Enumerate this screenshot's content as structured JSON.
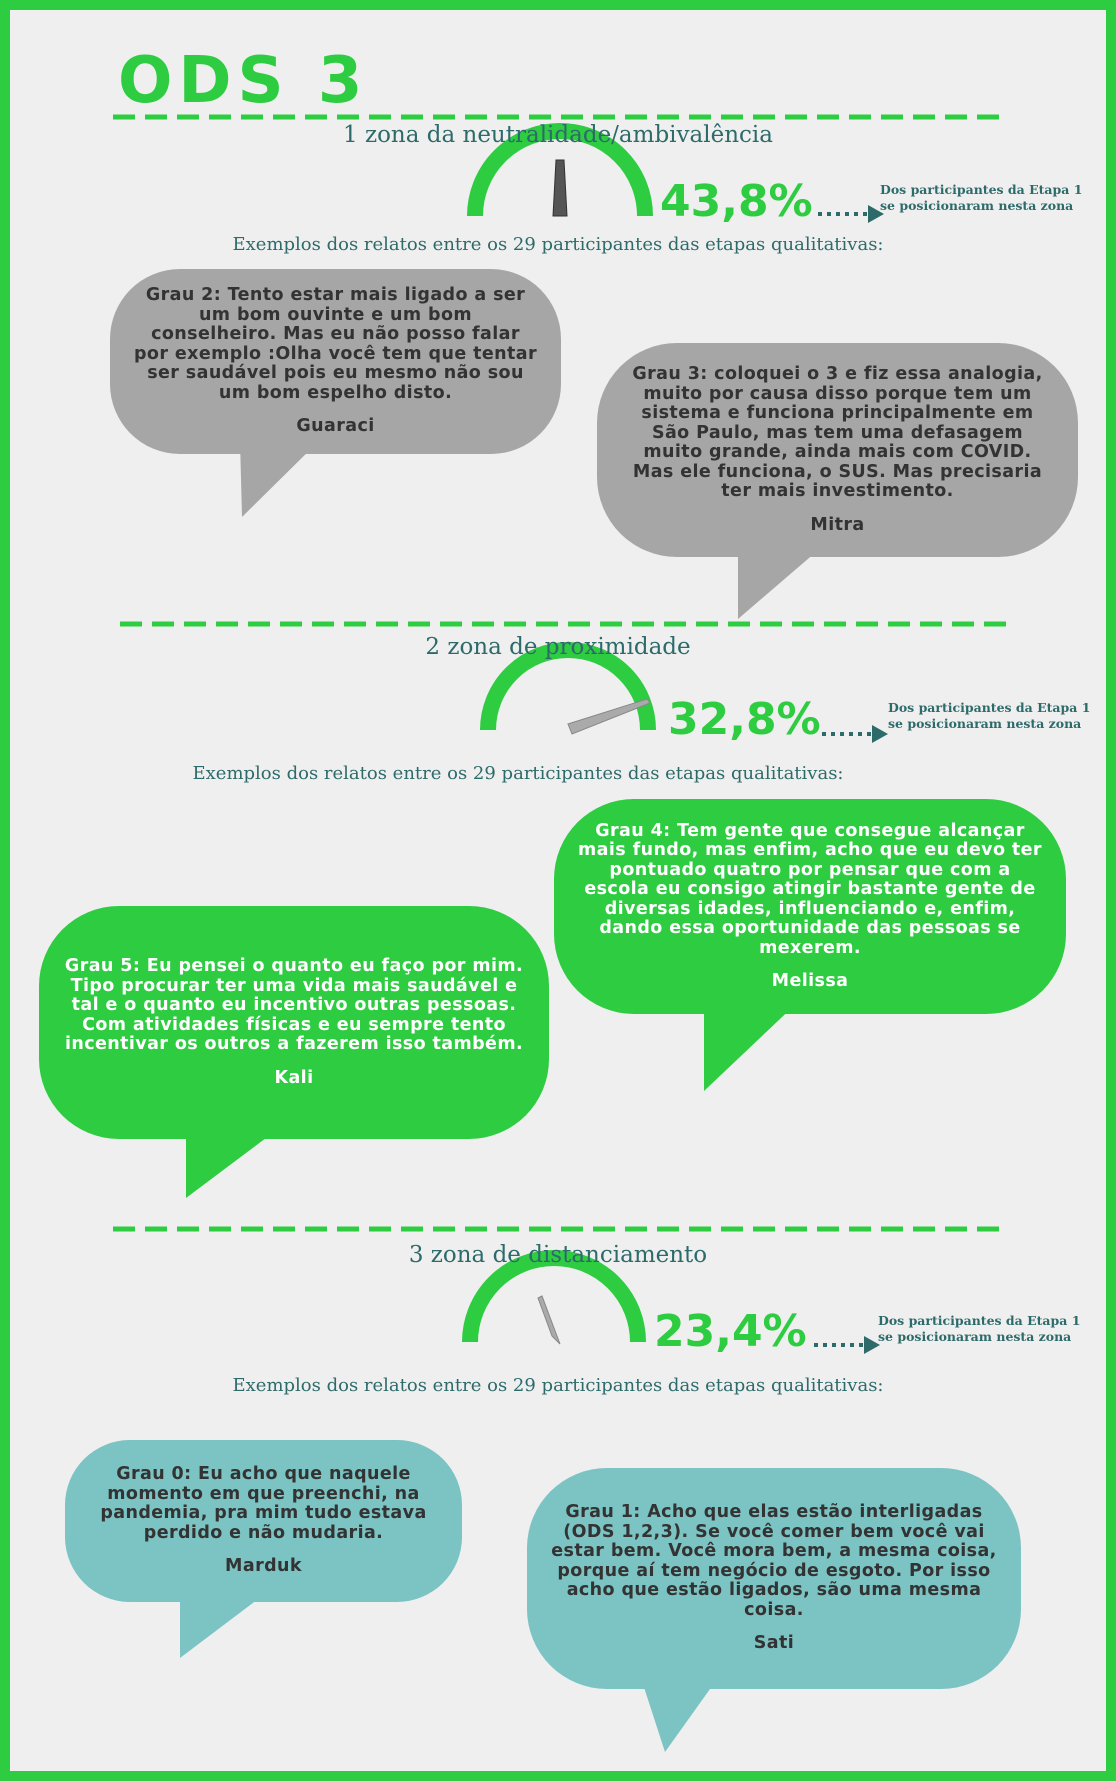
{
  "title": "ODS 3",
  "sections": [
    {
      "heading": "1  zona da neutralidade/ambivalência",
      "percent": "43,8%",
      "note": "Dos participantes da Etapa 1  se posicionaram nesta zona",
      "examples_label": "Exemplos dos relatos entre os 29  participantes das etapas qualitativas:",
      "quotes": [
        {
          "text": "Grau 2: Tento estar mais ligado a ser um bom ouvinte e um bom conselheiro. Mas eu não posso falar por exemplo :Olha você tem que tentar ser saudável pois eu mesmo não sou um bom espelho disto.",
          "author": "Guaraci"
        },
        {
          "text": "Grau 3: coloquei o 3 e fiz essa analogia, muito por causa disso porque tem um sistema e funciona principalmente em São Paulo, mas tem uma defasagem muito grande, ainda mais com COVID. Mas ele funciona, o SUS. Mas precisaria ter mais investimento.",
          "author": "Mitra"
        }
      ]
    },
    {
      "heading": "2  zona de proximidade",
      "percent": "32,8%",
      "note": "Dos participantes da Etapa 1  se posicionaram nesta zona",
      "examples_label": "Exemplos dos relatos entre os 29  participantes das etapas qualitativas:",
      "quotes": [
        {
          "text": "Grau 4:  Tem gente que consegue alcançar mais fundo, mas enfim, acho que eu devo ter pontuado quatro por pensar que com a escola eu consigo atingir bastante gente de diversas idades, influenciando e, enfim, dando essa oportunidade das pessoas se mexerem.",
          "author": "Melissa"
        },
        {
          "text": "Grau 5: Eu pensei o quanto eu faço por mim. Tipo procurar ter uma vida mais saudável e tal e o quanto eu incentivo outras pessoas. Com atividades físicas e eu sempre tento incentivar os outros a fazerem isso também.",
          "author": "Kali"
        }
      ]
    },
    {
      "heading": "3  zona de distanciamento",
      "percent": "23,4%",
      "note": "Dos participantes da Etapa 1  se posicionaram nesta zona",
      "examples_label": "Exemplos dos relatos entre os 29  participantes das etapas qualitativas:",
      "quotes": [
        {
          "text": "Grau 0: Eu acho que naquele momento em que preenchi, na pandemia, pra mim tudo estava perdido e não mudaria.",
          "author": "Marduk"
        },
        {
          "text": "Grau 1: Acho que elas estão interligadas (ODS 1,2,3). Se você comer bem você vai estar bem. Você mora bem, a mesma coisa, porque aí tem negócio de esgoto. Por isso acho que estão ligados, são uma mesma coisa.",
          "author": "Sati"
        }
      ]
    }
  ]
}
